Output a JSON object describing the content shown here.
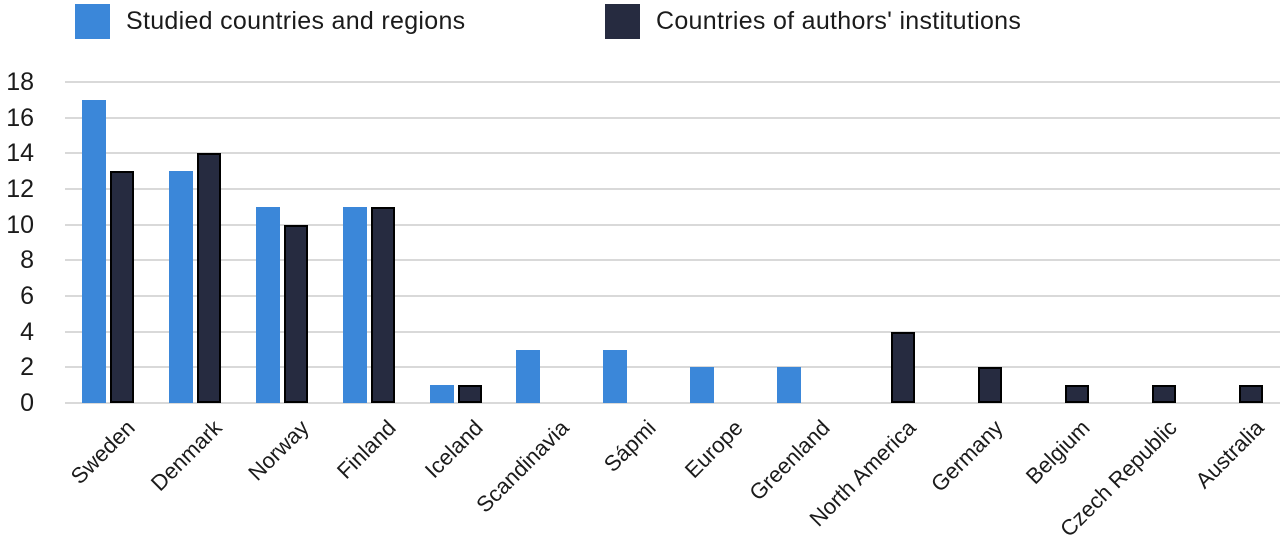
{
  "legend": {
    "items": [
      {
        "label": "Studied countries and regions",
        "color": "#3B87D9"
      },
      {
        "label": "Countries of authors' institutions",
        "color": "#262B40"
      }
    ]
  },
  "chart_data": {
    "type": "bar",
    "title": "",
    "xlabel": "",
    "ylabel": "",
    "categories": [
      "Sweden",
      "Denmark",
      "Norway",
      "Finland",
      "Iceland",
      "Scandinavia",
      "Sápmi",
      "Europe",
      "Greenland",
      "North America",
      "Germany",
      "Belgium",
      "Czech Republic",
      "Australia"
    ],
    "series": [
      {
        "name": "Studied countries and regions",
        "color": "#3B87D9",
        "values": [
          17,
          13,
          11,
          11,
          1,
          3,
          3,
          2,
          2,
          0,
          0,
          0,
          0,
          0
        ]
      },
      {
        "name": "Countries of authors' institutions",
        "color": "#262B40",
        "values": [
          13,
          14,
          10,
          11,
          1,
          0,
          0,
          0,
          0,
          4,
          2,
          1,
          1,
          1
        ]
      }
    ],
    "ylim": [
      0,
      18
    ],
    "ytick_step": 2,
    "yticks": [
      0,
      2,
      4,
      6,
      8,
      10,
      12,
      14,
      16,
      18
    ],
    "grid": "horizontal",
    "gridline_color": "#d9d9d9",
    "legend_position": "top"
  }
}
